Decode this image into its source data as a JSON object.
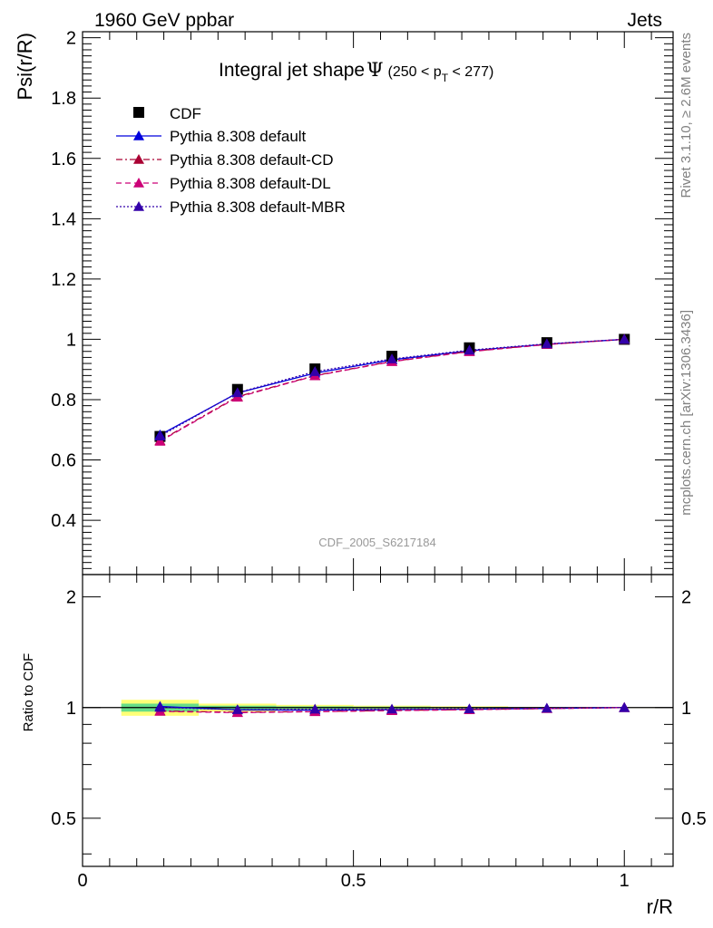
{
  "header": {
    "left": "1960 GeV ppbar",
    "right": "Jets"
  },
  "side_labels": {
    "rivet": "Rivet 3.1.10, ≥ 2.6M events",
    "mcplots": "mcplots.cern.ch [arXiv:1306.3436]"
  },
  "analysis_id": "CDF_2005_S6217184",
  "chart_data": {
    "type": "line",
    "title": {
      "main": "Integral jet shape",
      "symbol": "Ψ",
      "range_open": "(250 < p",
      "range_sub": "T",
      "range_close": " < 277)"
    },
    "xlabel": "r/R",
    "ylabel": "Psi(r/R)",
    "ratio_ylabel": "Ratio to CDF",
    "xlim": [
      0,
      1.09
    ],
    "ylim": [
      0.22,
      2.02
    ],
    "ratio_ylim": [
      0.37,
      2.3
    ],
    "legend_position": "top-left",
    "grid": false,
    "x_ticks": [
      {
        "v": 0,
        "label": "0"
      },
      {
        "v": 0.5,
        "label": "0.5"
      },
      {
        "v": 1,
        "label": "1"
      }
    ],
    "y_ticks": [
      {
        "v": 0.4,
        "label": "0.4"
      },
      {
        "v": 0.6,
        "label": "0.6"
      },
      {
        "v": 0.8,
        "label": "0.8"
      },
      {
        "v": 1,
        "label": "1"
      },
      {
        "v": 1.2,
        "label": "1.2"
      },
      {
        "v": 1.4,
        "label": "1.4"
      },
      {
        "v": 1.6,
        "label": "1.6"
      },
      {
        "v": 1.8,
        "label": "1.8"
      },
      {
        "v": 2,
        "label": "2"
      }
    ],
    "ratio_y_ticks": [
      {
        "v": 0.5,
        "label": "0.5"
      },
      {
        "v": 1,
        "label": "1"
      },
      {
        "v": 2,
        "label": "2"
      }
    ],
    "x": [
      0.143,
      0.286,
      0.429,
      0.571,
      0.714,
      0.857,
      1.0
    ],
    "data": {
      "name": "CDF",
      "values": [
        0.678,
        0.834,
        0.902,
        0.944,
        0.972,
        0.989,
        1.0
      ],
      "band_inner": [
        0.025,
        0.012,
        0.008,
        0.006,
        0.004,
        0.002,
        0.001
      ],
      "band_outer": [
        0.05,
        0.025,
        0.017,
        0.012,
        0.008,
        0.004,
        0.002
      ],
      "color": "#000000"
    },
    "series": [
      {
        "name": "Pythia 8.308 default",
        "values": [
          0.683,
          0.822,
          0.888,
          0.932,
          0.962,
          0.984,
          1.0
        ],
        "color": "#0000dd",
        "dash": ""
      },
      {
        "name": "Pythia 8.308 default-CD",
        "values": [
          0.664,
          0.81,
          0.88,
          0.927,
          0.96,
          0.983,
          1.0
        ],
        "color": "#aa0033",
        "dash": "7,3,2,3"
      },
      {
        "name": "Pythia 8.308 default-DL",
        "values": [
          0.662,
          0.808,
          0.879,
          0.926,
          0.959,
          0.983,
          1.0
        ],
        "color": "#cc0077",
        "dash": "6,4"
      },
      {
        "name": "Pythia 8.308 default-MBR",
        "values": [
          0.679,
          0.823,
          0.893,
          0.935,
          0.964,
          0.985,
          1.0
        ],
        "color": "#3300aa",
        "dash": "2,2"
      }
    ],
    "ratio_band_colors": {
      "inner": "#66dd88",
      "outer": "#ffff77"
    }
  }
}
